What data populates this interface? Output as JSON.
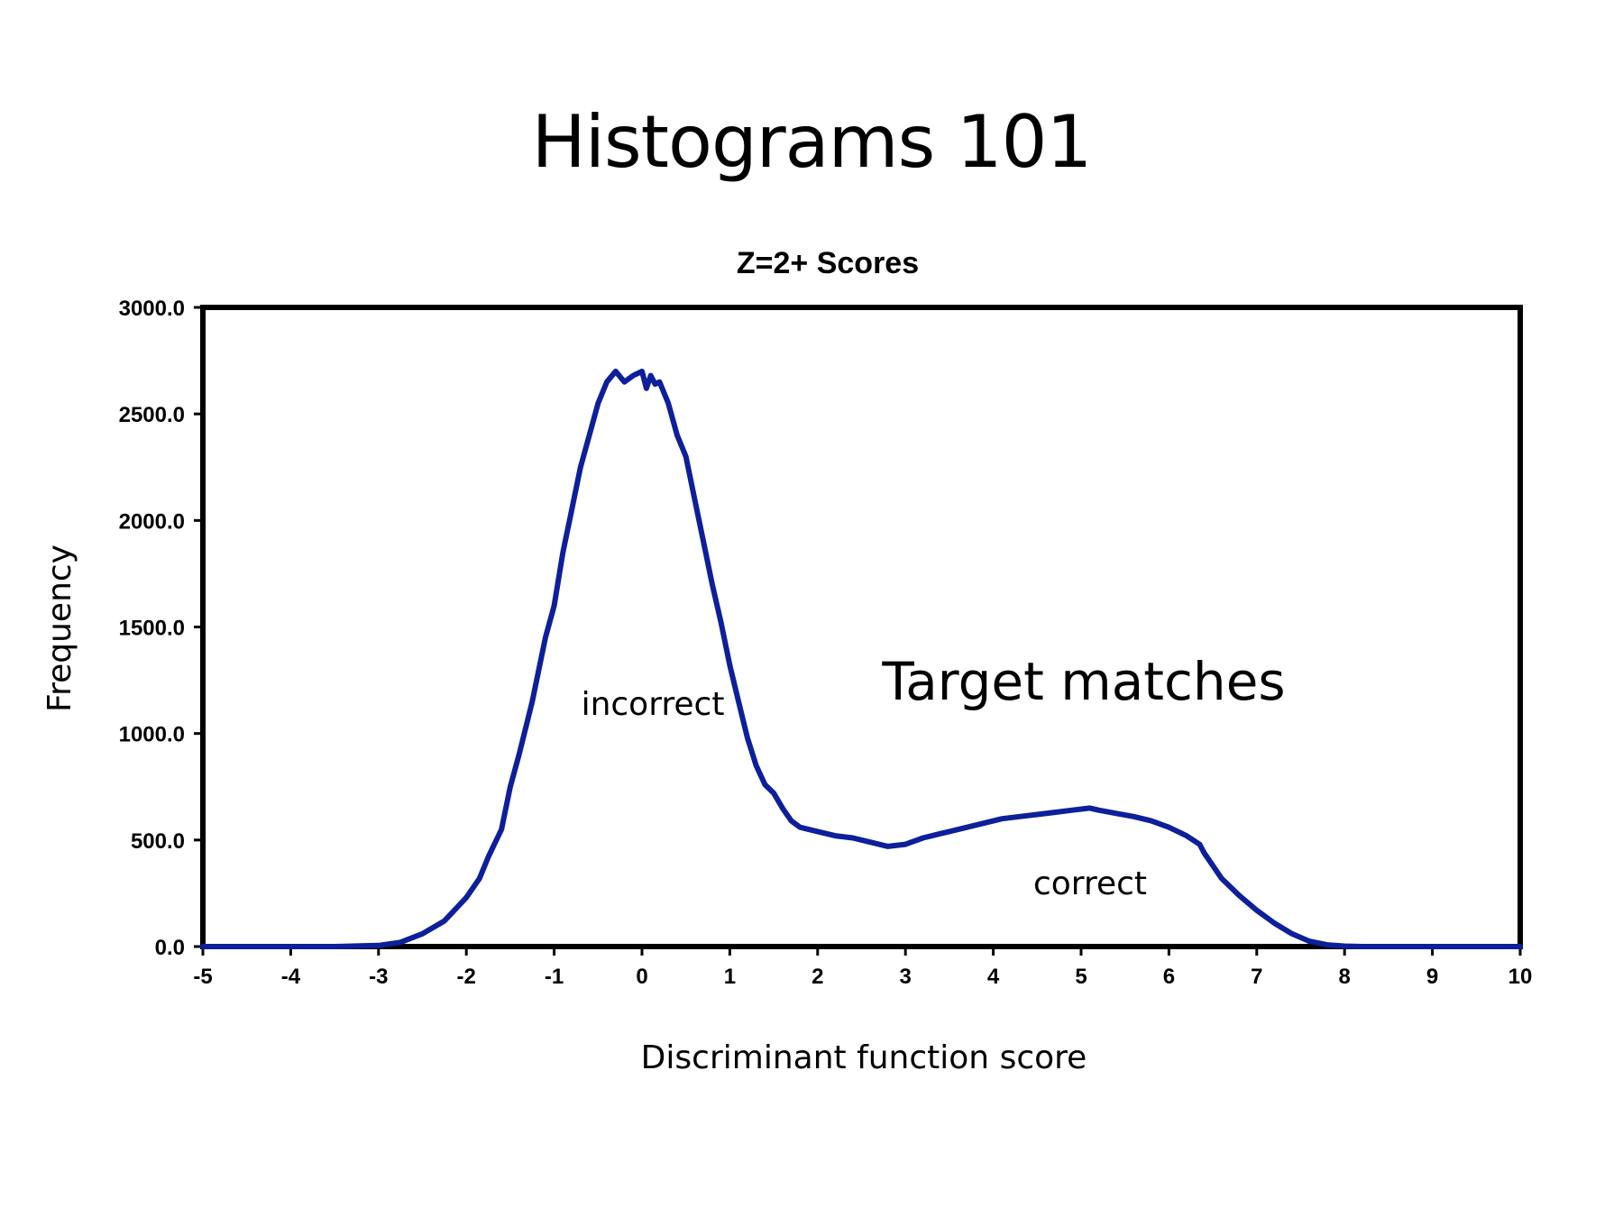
{
  "slide": {
    "title": "Histograms 101"
  },
  "colors": {
    "series": "#0d1f9a",
    "frame": "#000000",
    "background": "#ffffff"
  },
  "chart_data": {
    "type": "line",
    "title": "Z=2+ Scores",
    "xlabel": "Discriminant function score",
    "ylabel": "Frequency",
    "xlim": [
      -5,
      10
    ],
    "ylim": [
      0,
      3000
    ],
    "grid": false,
    "legend": "none",
    "x_ticks": [
      "-5",
      "-4",
      "-3",
      "-2",
      "-1",
      "0",
      "1",
      "2",
      "3",
      "4",
      "5",
      "6",
      "7",
      "8",
      "9",
      "10"
    ],
    "y_ticks": [
      "0.0",
      "500.0",
      "1000.0",
      "1500.0",
      "2000.0",
      "2500.0",
      "3000.0"
    ],
    "annotations": [
      "Target matches",
      "incorrect",
      "correct"
    ],
    "series": [
      {
        "x": [
          -5,
          -4.5,
          -4,
          -3.5,
          -3,
          -2.75,
          -2.5,
          -2.25,
          -2,
          -1.85,
          -1.75,
          -1.6,
          -1.5,
          -1.4,
          -1.25,
          -1.1,
          -1,
          -0.9,
          -0.8,
          -0.7,
          -0.6,
          -0.5,
          -0.4,
          -0.3,
          -0.2,
          -0.1,
          0,
          0.05,
          0.1,
          0.15,
          0.2,
          0.3,
          0.4,
          0.5,
          0.6,
          0.7,
          0.8,
          0.9,
          1,
          1.1,
          1.2,
          1.3,
          1.4,
          1.5,
          1.6,
          1.7,
          1.8,
          2,
          2.2,
          2.4,
          2.6,
          2.8,
          3,
          3.2,
          3.4,
          3.5,
          3.7,
          3.9,
          4.1,
          4.3,
          4.5,
          4.7,
          4.9,
          5.1,
          5.2,
          5.4,
          5.6,
          5.8,
          6,
          6.2,
          6.35,
          6.4,
          6.5,
          6.6,
          6.8,
          7,
          7.2,
          7.4,
          7.6,
          7.8,
          8,
          8.2,
          8.5,
          9,
          9.5,
          10
        ],
        "values": [
          0,
          0,
          0,
          0,
          5,
          20,
          60,
          120,
          230,
          320,
          420,
          550,
          750,
          900,
          1150,
          1450,
          1600,
          1850,
          2050,
          2250,
          2400,
          2550,
          2650,
          2700,
          2650,
          2680,
          2700,
          2620,
          2680,
          2640,
          2650,
          2550,
          2400,
          2300,
          2100,
          1900,
          1700,
          1520,
          1320,
          1150,
          980,
          850,
          760,
          720,
          650,
          590,
          560,
          540,
          520,
          510,
          490,
          470,
          480,
          510,
          530,
          540,
          560,
          580,
          600,
          610,
          620,
          630,
          640,
          650,
          640,
          625,
          610,
          590,
          560,
          520,
          480,
          440,
          380,
          320,
          240,
          170,
          110,
          60,
          25,
          8,
          2,
          0,
          0,
          0,
          0,
          0
        ]
      }
    ]
  }
}
